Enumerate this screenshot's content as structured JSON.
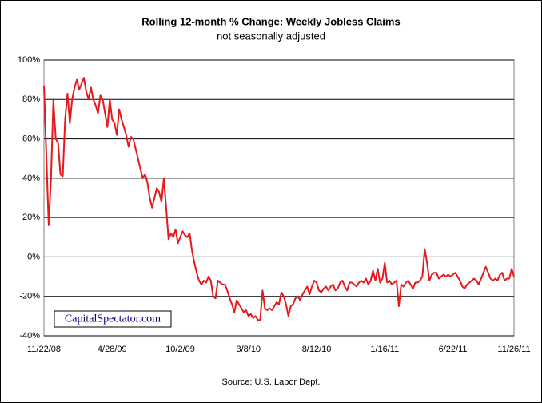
{
  "chart_data": {
    "type": "line",
    "title": "Rolling 12-month %  Change: Weekly Jobless Claims",
    "subtitle": "not seasonally adjusted",
    "source": "Source: U.S. Labor Dept.",
    "watermark": "CapitalSpectator.com",
    "color": "#e41a1c",
    "grid": true,
    "ylim": [
      -40,
      100
    ],
    "yticks": [
      {
        "value": -40,
        "label": "-40%"
      },
      {
        "value": -20,
        "label": "-20%"
      },
      {
        "value": 0,
        "label": "0%"
      },
      {
        "value": 20,
        "label": "20%"
      },
      {
        "value": 40,
        "label": "40%"
      },
      {
        "value": 60,
        "label": "60%"
      },
      {
        "value": 80,
        "label": "80%"
      },
      {
        "value": 100,
        "label": "100%"
      }
    ],
    "categories": [
      "11/22/08",
      null,
      null,
      null,
      null,
      null,
      null,
      null,
      null,
      null,
      null,
      null,
      null,
      null,
      null,
      null,
      null,
      null,
      null,
      null,
      null,
      null,
      null,
      null,
      null,
      null,
      null,
      null,
      null,
      "4/28/09",
      null,
      null,
      null,
      null,
      null,
      null,
      null,
      null,
      null,
      null,
      null,
      null,
      null,
      null,
      null,
      null,
      null,
      null,
      null,
      null,
      null,
      null,
      null,
      null,
      null,
      null,
      null,
      null,
      "10/2/09",
      null,
      null,
      null,
      null,
      null,
      null,
      null,
      null,
      null,
      null,
      null,
      null,
      null,
      null,
      null,
      null,
      null,
      null,
      null,
      null,
      null,
      null,
      null,
      null,
      null,
      null,
      null,
      null,
      "3/8/10",
      null,
      null,
      null,
      null,
      null,
      null,
      null,
      null,
      null,
      null,
      null,
      null,
      null,
      null,
      null,
      null,
      null,
      null,
      null,
      null,
      null,
      null,
      null,
      null,
      null,
      null,
      null,
      null,
      "8/12/10",
      null,
      null,
      null,
      null,
      null,
      null,
      null,
      null,
      null,
      null,
      null,
      null,
      null,
      null,
      null,
      null,
      null,
      null,
      null,
      null,
      null,
      null,
      null,
      null,
      null,
      null,
      null,
      null,
      "1/16/11",
      null,
      null,
      null,
      null,
      null,
      null,
      null,
      null,
      null,
      null,
      null,
      null,
      null,
      null,
      null,
      null,
      null,
      null,
      null,
      null,
      null,
      null,
      null,
      null,
      null,
      null,
      null,
      null,
      "6/22/11",
      null,
      null,
      null,
      null,
      null,
      null,
      null,
      null,
      null,
      null,
      null,
      null,
      null,
      null,
      null,
      null,
      null,
      null,
      null,
      null,
      null,
      null,
      null,
      null,
      null,
      "11/26/11"
    ],
    "values": [
      87,
      52,
      16,
      40,
      80,
      60,
      58,
      42,
      41,
      70,
      83,
      68,
      80,
      86,
      90,
      85,
      88,
      91,
      84,
      80,
      86,
      80,
      77,
      73,
      82,
      80,
      73,
      66,
      80,
      70,
      68,
      62,
      75,
      70,
      66,
      62,
      56,
      61,
      60,
      55,
      50,
      45,
      40,
      42,
      38,
      30,
      25,
      30,
      35,
      33,
      28,
      40,
      25,
      9,
      12,
      10,
      14,
      7,
      10,
      13,
      11,
      10,
      12,
      3,
      -3,
      -8,
      -12,
      -14,
      -12,
      -13,
      -10,
      -12,
      -20,
      -21,
      -12,
      -13,
      -14,
      -14,
      -17,
      -21,
      -24,
      -28,
      -22,
      -24,
      -26,
      -28,
      -27,
      -30,
      -29,
      -31,
      -30,
      -32,
      -32,
      -17,
      -26,
      -27,
      -26,
      -27,
      -25,
      -23,
      -24,
      -18,
      -20,
      -24,
      -30,
      -25,
      -24,
      -21,
      -20,
      -22,
      -19,
      -17,
      -15,
      -19,
      -15,
      -12,
      -13,
      -17,
      -18,
      -16,
      -15,
      -17,
      -15,
      -14,
      -17,
      -16,
      -13,
      -12,
      -15,
      -17,
      -13,
      -13,
      -14,
      -15,
      -13,
      -12,
      -13,
      -11,
      -14,
      -12,
      -7,
      -12,
      -6,
      -13,
      -11,
      -3,
      -13,
      -12,
      -14,
      -13,
      -12,
      -25,
      -14,
      -15,
      -13,
      -12,
      -14,
      -16,
      -13,
      -13,
      -12,
      -10,
      4,
      -3,
      -12,
      -9,
      -8,
      -8,
      -11,
      -10,
      -9,
      -10,
      -9,
      -10,
      -9,
      -8,
      -10,
      -12,
      -15,
      -16,
      -14,
      -13,
      -12,
      -11,
      -12,
      -14,
      -11,
      -8,
      -5,
      -8,
      -11,
      -12,
      -11,
      -12,
      -9,
      -8,
      -12,
      -11,
      -11,
      -6,
      -10
    ]
  }
}
